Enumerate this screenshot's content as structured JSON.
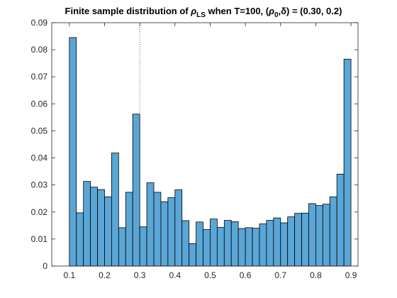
{
  "chart_data": {
    "type": "bar",
    "title": "Finite sample distribution of ρ_LS when T=100, (ρ_0,δ) = (0.30, 0.2)",
    "title_parts": {
      "prefix": "Finite sample distribution of ",
      "rho": "ρ",
      "ls_sub": "LS",
      "middle": " when T=100, (",
      "rho0": "ρ",
      "zero_sub": "0",
      "delta_part": ",δ) = (0.30, 0.2)"
    },
    "xlabel": "",
    "ylabel": "",
    "xlim": [
      0.05,
      0.92
    ],
    "ylim": [
      0,
      0.09
    ],
    "xticks": [
      0.1,
      0.2,
      0.3,
      0.4,
      0.5,
      0.6,
      0.7,
      0.8,
      0.9
    ],
    "xtick_labels": [
      "0.1",
      "0.2",
      "0.3",
      "0.4",
      "0.5",
      "0.6",
      "0.7",
      "0.8",
      "0.9"
    ],
    "yticks": [
      0,
      0.01,
      0.02,
      0.03,
      0.04,
      0.05,
      0.06,
      0.07,
      0.08,
      0.09
    ],
    "ytick_labels": [
      "0",
      "0.01",
      "0.02",
      "0.03",
      "0.04",
      "0.05",
      "0.06",
      "0.07",
      "0.08",
      "0.09"
    ],
    "bin_start": 0.1,
    "bin_width": 0.02,
    "values": [
      0.0845,
      0.0197,
      0.0313,
      0.0292,
      0.0283,
      0.0256,
      0.0418,
      0.0142,
      0.0273,
      0.0562,
      0.0145,
      0.0308,
      0.0273,
      0.0238,
      0.0253,
      0.0282,
      0.0168,
      0.0083,
      0.0163,
      0.0135,
      0.0174,
      0.0143,
      0.0169,
      0.0164,
      0.0139,
      0.0142,
      0.014,
      0.0156,
      0.0169,
      0.0178,
      0.016,
      0.0182,
      0.0195,
      0.0196,
      0.0231,
      0.0224,
      0.0229,
      0.0256,
      0.034,
      0.0765
    ],
    "reference_line_x": 0.3,
    "grid": false,
    "legend": "none",
    "colors": {
      "bar_fill": "#5aa6d6",
      "bar_edge": "#000000",
      "reference_line": "#b04a4a",
      "axis": "#262626"
    }
  }
}
